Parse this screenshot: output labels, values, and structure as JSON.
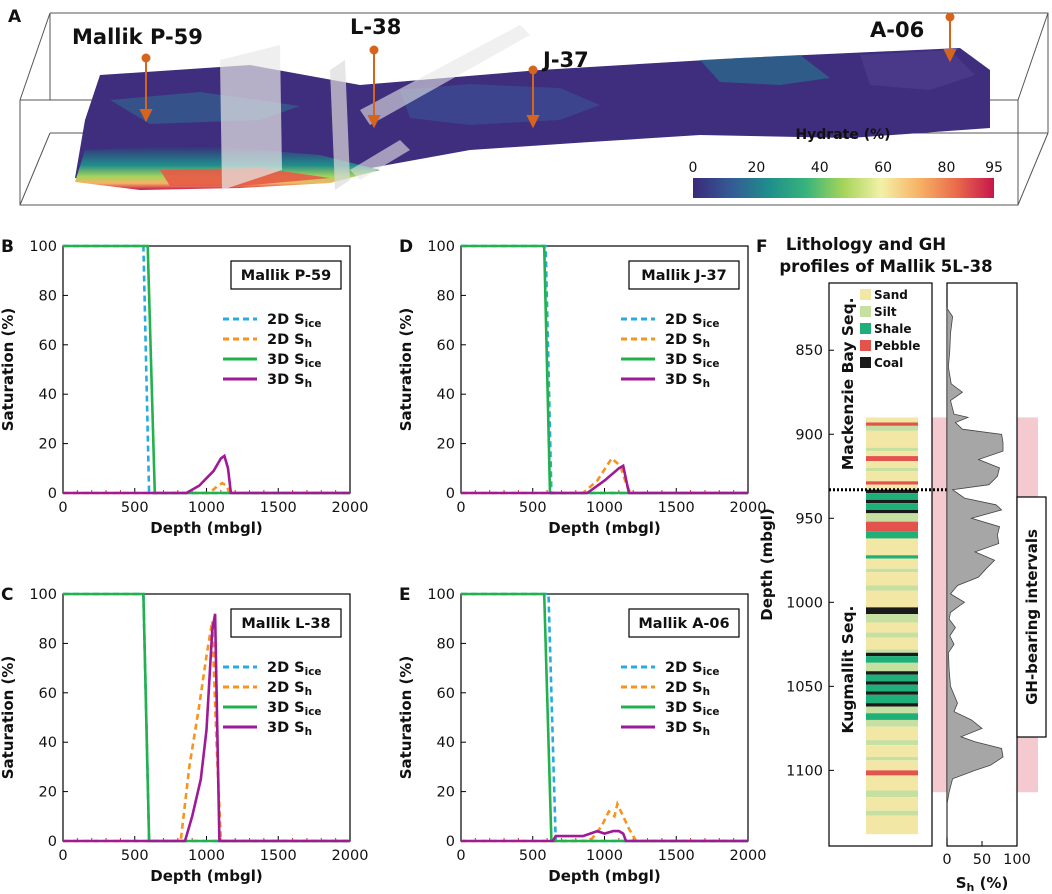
{
  "colors": {
    "ice2d": "#29abe2",
    "sh2d": "#f7931e",
    "ice3d": "#22b14c",
    "sh3d": "#9e1a96",
    "axis": "#000000",
    "tick_red": "#d4302a",
    "sand": "#f3e7a6",
    "silt": "#c5e0a0",
    "shale": "#1fb07a",
    "pebble": "#e2534d",
    "coal": "#1a1a1a",
    "gh_band": "#f4c9cf",
    "sh_fill": "#a6a6a6",
    "cmap": [
      "#3b2a7a",
      "#345a96",
      "#1f8d8c",
      "#37b47b",
      "#a6d45a",
      "#f3f0a8",
      "#f7b365",
      "#e96b4c",
      "#c7164a"
    ]
  },
  "panel_a": {
    "letter": "A",
    "wells": [
      "Mallik P-59",
      "L-38",
      "J-37",
      "A-06"
    ],
    "colorbar": {
      "title": "Hydrate (%)",
      "ticks": [
        "0",
        "20",
        "40",
        "60",
        "80",
        "95"
      ]
    }
  },
  "legend_labels": {
    "ice2d": "2D S",
    "sh2d": "2D S",
    "ice3d": "3D S",
    "sh3d": "3D S",
    "sub_ice": "ice",
    "sub_h": "h"
  },
  "chart_data": [
    {
      "id": "B",
      "type": "line",
      "well": "Mallik P-59",
      "xlabel": "Depth (mbgl)",
      "ylabel": "Saturation (%)",
      "xlim": [
        0,
        2000
      ],
      "ylim": [
        0,
        100
      ],
      "xticks": [
        "0",
        "500",
        "1000",
        "1500",
        "2000"
      ],
      "yticks": [
        "0",
        "20",
        "40",
        "60",
        "80",
        "100"
      ],
      "series": [
        {
          "name": "2D Sice",
          "style": "dashed",
          "x": [
            0,
            560,
            600,
            2000
          ],
          "y": [
            100,
            100,
            0,
            0
          ]
        },
        {
          "name": "2D Sh",
          "style": "dashed",
          "x": [
            0,
            1020,
            1080,
            1110,
            1140,
            1160,
            2000
          ],
          "y": [
            0,
            0,
            3,
            4,
            3,
            0,
            0
          ]
        },
        {
          "name": "3D Sice",
          "style": "solid",
          "x": [
            0,
            590,
            640,
            2000
          ],
          "y": [
            100,
            100,
            0,
            0
          ]
        },
        {
          "name": "3D Sh",
          "style": "solid",
          "x": [
            0,
            860,
            950,
            1050,
            1100,
            1125,
            1150,
            1170,
            2000
          ],
          "y": [
            0,
            0,
            3,
            9,
            14,
            15,
            10,
            0,
            0
          ]
        }
      ]
    },
    {
      "id": "D",
      "type": "line",
      "well": "Mallik J-37",
      "xlabel": "Depth (mbgl)",
      "ylabel": "Saturation (%)",
      "xlim": [
        0,
        2000
      ],
      "ylim": [
        0,
        100
      ],
      "xticks": [
        "0",
        "500",
        "1000",
        "1500",
        "2000"
      ],
      "yticks": [
        "0",
        "20",
        "40",
        "60",
        "80",
        "100"
      ],
      "series": [
        {
          "name": "2D Sice",
          "style": "dashed",
          "x": [
            0,
            590,
            630,
            2000
          ],
          "y": [
            100,
            100,
            0,
            0
          ]
        },
        {
          "name": "2D Sh",
          "style": "dashed",
          "x": [
            0,
            850,
            950,
            1050,
            1110,
            1150,
            1180,
            2000
          ],
          "y": [
            0,
            0,
            5,
            14,
            11,
            4,
            0,
            0
          ]
        },
        {
          "name": "3D Sice",
          "style": "solid",
          "x": [
            0,
            580,
            620,
            2000
          ],
          "y": [
            100,
            100,
            0,
            0
          ]
        },
        {
          "name": "3D Sh",
          "style": "solid",
          "x": [
            0,
            880,
            1000,
            1100,
            1130,
            1170,
            2000
          ],
          "y": [
            0,
            0,
            5,
            10,
            11,
            0,
            0
          ]
        }
      ]
    },
    {
      "id": "C",
      "type": "line",
      "well": "Mallik L-38",
      "xlabel": "Depth (mbgl)",
      "ylabel": "Saturation (%)",
      "xlim": [
        0,
        2000
      ],
      "ylim": [
        0,
        100
      ],
      "xticks": [
        "0",
        "500",
        "1000",
        "1500",
        "2000"
      ],
      "yticks": [
        "0",
        "20",
        "40",
        "60",
        "80",
        "100"
      ],
      "series": [
        {
          "name": "2D Sice",
          "style": "dashed",
          "x": [
            0,
            560,
            600,
            2000
          ],
          "y": [
            100,
            100,
            0,
            0
          ]
        },
        {
          "name": "2D Sh",
          "style": "dashed",
          "x": [
            0,
            820,
            880,
            950,
            1000,
            1040,
            1070,
            1100,
            2000
          ],
          "y": [
            0,
            0,
            30,
            55,
            75,
            89,
            40,
            0,
            0
          ]
        },
        {
          "name": "3D Sice",
          "style": "solid",
          "x": [
            0,
            560,
            600,
            2000
          ],
          "y": [
            100,
            100,
            0,
            0
          ]
        },
        {
          "name": "3D Sh",
          "style": "solid",
          "x": [
            0,
            850,
            900,
            960,
            1000,
            1040,
            1060,
            1090,
            2000
          ],
          "y": [
            0,
            0,
            10,
            25,
            45,
            85,
            92,
            0,
            0
          ]
        }
      ]
    },
    {
      "id": "E",
      "type": "line",
      "well": "Mallik A-06",
      "xlabel": "Depth (mbgl)",
      "ylabel": "Saturation (%)",
      "xlim": [
        0,
        2000
      ],
      "ylim": [
        0,
        100
      ],
      "xticks": [
        "0",
        "500",
        "1000",
        "1500",
        "2000"
      ],
      "yticks": [
        "0",
        "20",
        "40",
        "60",
        "80",
        "100"
      ],
      "series": [
        {
          "name": "2D Sice",
          "style": "dashed",
          "x": [
            0,
            610,
            660,
            2000
          ],
          "y": [
            100,
            100,
            0,
            0
          ]
        },
        {
          "name": "2D Sh",
          "style": "dashed",
          "x": [
            0,
            900,
            980,
            1030,
            1070,
            1090,
            1130,
            1170,
            1220,
            2000
          ],
          "y": [
            0,
            0,
            6,
            12,
            10,
            15,
            10,
            5,
            0,
            0
          ]
        },
        {
          "name": "3D Sice",
          "style": "solid",
          "x": [
            0,
            580,
            630,
            2000
          ],
          "y": [
            100,
            100,
            0,
            0
          ]
        },
        {
          "name": "3D Sh",
          "style": "solid",
          "x": [
            0,
            640,
            660,
            750,
            850,
            950,
            1000,
            1060,
            1100,
            1130,
            1150,
            2000
          ],
          "y": [
            0,
            0,
            2,
            2,
            2,
            4,
            3,
            4,
            4,
            3,
            0,
            0
          ]
        }
      ]
    },
    {
      "id": "F",
      "type": "area",
      "title": "Lithology and GH",
      "title2": "profiles of Mallik 5L-38",
      "ylabel": "Depth (mbgl)",
      "xlabel": "S",
      "xlabel_sub": "h",
      "xlabel_unit": " (%)",
      "ylim": [
        810,
        1145
      ],
      "yticks": [
        850,
        900,
        950,
        1000,
        1050,
        1100
      ],
      "xticks": [
        "0",
        "50",
        "100"
      ],
      "seq_upper": "Mackenzie Bay Seq.",
      "seq_lower": "Kugmallit Seq.",
      "boundary": 933,
      "gh_label": "GH-bearing intervals",
      "gh_range": [
        890,
        1113
      ],
      "legend": [
        "Sand",
        "Silt",
        "Shale",
        "Pebble",
        "Coal"
      ],
      "sh_profile": {
        "depth": [
          825,
          830,
          840,
          850,
          860,
          870,
          875,
          880,
          888,
          890,
          893,
          897,
          900,
          905,
          910,
          915,
          920,
          925,
          930,
          933,
          938,
          942,
          945,
          950,
          955,
          960,
          965,
          970,
          975,
          980,
          985,
          990,
          995,
          1000,
          1002,
          1006,
          1010,
          1015,
          1020,
          1025,
          1030,
          1040,
          1050,
          1060,
          1065,
          1070,
          1075,
          1080,
          1083,
          1087,
          1092,
          1097,
          1100,
          1105,
          1113,
          1120,
          1140
        ],
        "sh": [
          0,
          8,
          5,
          4,
          2,
          6,
          22,
          5,
          10,
          30,
          12,
          22,
          78,
          80,
          80,
          45,
          75,
          72,
          60,
          8,
          25,
          70,
          78,
          35,
          75,
          72,
          74,
          40,
          68,
          56,
          45,
          15,
          5,
          25,
          18,
          5,
          3,
          12,
          4,
          10,
          2,
          3,
          5,
          15,
          10,
          35,
          50,
          20,
          40,
          78,
          80,
          62,
          40,
          8,
          3,
          0,
          0
        ]
      },
      "litho": [
        {
          "d0": 890,
          "d1": 893,
          "t": "Sand"
        },
        {
          "d0": 893,
          "d1": 895,
          "t": "Pebble"
        },
        {
          "d0": 895,
          "d1": 898,
          "t": "Silt"
        },
        {
          "d0": 898,
          "d1": 908,
          "t": "Sand"
        },
        {
          "d0": 908,
          "d1": 910,
          "t": "Silt"
        },
        {
          "d0": 910,
          "d1": 913,
          "t": "Sand"
        },
        {
          "d0": 913,
          "d1": 916,
          "t": "Pebble"
        },
        {
          "d0": 916,
          "d1": 920,
          "t": "Sand"
        },
        {
          "d0": 920,
          "d1": 922,
          "t": "Silt"
        },
        {
          "d0": 922,
          "d1": 928,
          "t": "Sand"
        },
        {
          "d0": 928,
          "d1": 930,
          "t": "Pebble"
        },
        {
          "d0": 930,
          "d1": 933,
          "t": "Sand"
        },
        {
          "d0": 933,
          "d1": 935,
          "t": "Coal"
        },
        {
          "d0": 935,
          "d1": 939,
          "t": "Shale"
        },
        {
          "d0": 939,
          "d1": 941,
          "t": "Coal"
        },
        {
          "d0": 941,
          "d1": 945,
          "t": "Shale"
        },
        {
          "d0": 945,
          "d1": 947,
          "t": "Coal"
        },
        {
          "d0": 947,
          "d1": 952,
          "t": "Silt"
        },
        {
          "d0": 952,
          "d1": 958,
          "t": "Pebble"
        },
        {
          "d0": 958,
          "d1": 962,
          "t": "Shale"
        },
        {
          "d0": 962,
          "d1": 972,
          "t": "Sand"
        },
        {
          "d0": 972,
          "d1": 974,
          "t": "Shale"
        },
        {
          "d0": 974,
          "d1": 980,
          "t": "Sand"
        },
        {
          "d0": 980,
          "d1": 982,
          "t": "Silt"
        },
        {
          "d0": 982,
          "d1": 990,
          "t": "Sand"
        },
        {
          "d0": 990,
          "d1": 993,
          "t": "Silt"
        },
        {
          "d0": 993,
          "d1": 1003,
          "t": "Sand"
        },
        {
          "d0": 1003,
          "d1": 1007,
          "t": "Coal"
        },
        {
          "d0": 1007,
          "d1": 1012,
          "t": "Silt"
        },
        {
          "d0": 1012,
          "d1": 1018,
          "t": "Sand"
        },
        {
          "d0": 1018,
          "d1": 1021,
          "t": "Silt"
        },
        {
          "d0": 1021,
          "d1": 1028,
          "t": "Sand"
        },
        {
          "d0": 1028,
          "d1": 1030,
          "t": "Silt"
        },
        {
          "d0": 1030,
          "d1": 1032,
          "t": "Coal"
        },
        {
          "d0": 1032,
          "d1": 1036,
          "t": "Shale"
        },
        {
          "d0": 1036,
          "d1": 1041,
          "t": "Silt"
        },
        {
          "d0": 1041,
          "d1": 1043,
          "t": "Coal"
        },
        {
          "d0": 1043,
          "d1": 1047,
          "t": "Shale"
        },
        {
          "d0": 1047,
          "d1": 1049,
          "t": "Coal"
        },
        {
          "d0": 1049,
          "d1": 1053,
          "t": "Shale"
        },
        {
          "d0": 1053,
          "d1": 1055,
          "t": "Coal"
        },
        {
          "d0": 1055,
          "d1": 1060,
          "t": "Shale"
        },
        {
          "d0": 1060,
          "d1": 1062,
          "t": "Coal"
        },
        {
          "d0": 1062,
          "d1": 1066,
          "t": "Silt"
        },
        {
          "d0": 1066,
          "d1": 1070,
          "t": "Shale"
        },
        {
          "d0": 1070,
          "d1": 1074,
          "t": "Silt"
        },
        {
          "d0": 1074,
          "d1": 1082,
          "t": "Sand"
        },
        {
          "d0": 1082,
          "d1": 1085,
          "t": "Silt"
        },
        {
          "d0": 1085,
          "d1": 1092,
          "t": "Sand"
        },
        {
          "d0": 1092,
          "d1": 1094,
          "t": "Silt"
        },
        {
          "d0": 1094,
          "d1": 1100,
          "t": "Sand"
        },
        {
          "d0": 1100,
          "d1": 1103,
          "t": "Pebble"
        },
        {
          "d0": 1103,
          "d1": 1112,
          "t": "Sand"
        },
        {
          "d0": 1112,
          "d1": 1116,
          "t": "Silt"
        },
        {
          "d0": 1116,
          "d1": 1124,
          "t": "Sand"
        },
        {
          "d0": 1124,
          "d1": 1127,
          "t": "Silt"
        },
        {
          "d0": 1127,
          "d1": 1138,
          "t": "Sand"
        }
      ]
    }
  ]
}
